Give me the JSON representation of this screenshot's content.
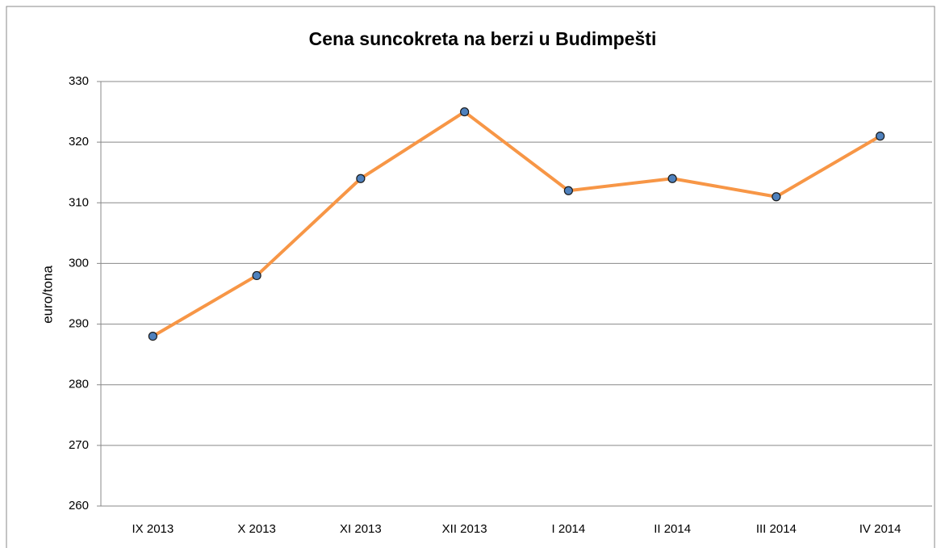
{
  "chart_data": {
    "type": "line",
    "title": "Cena suncokreta na berzi u Budimpešti",
    "y_label": "euro/tona",
    "categories": [
      "IX 2013",
      "X 2013",
      "XI 2013",
      "XII 2013",
      "I 2014",
      "II 2014",
      "III 2014",
      "IV 2014"
    ],
    "values": [
      288,
      298,
      314,
      325,
      312,
      314,
      311,
      321
    ],
    "color": "#f79646",
    "marker_color": "#4f81bd",
    "ylim": [
      260,
      330
    ],
    "yticks": [
      260,
      270,
      280,
      290,
      300,
      310,
      320,
      330
    ],
    "grid": true
  }
}
